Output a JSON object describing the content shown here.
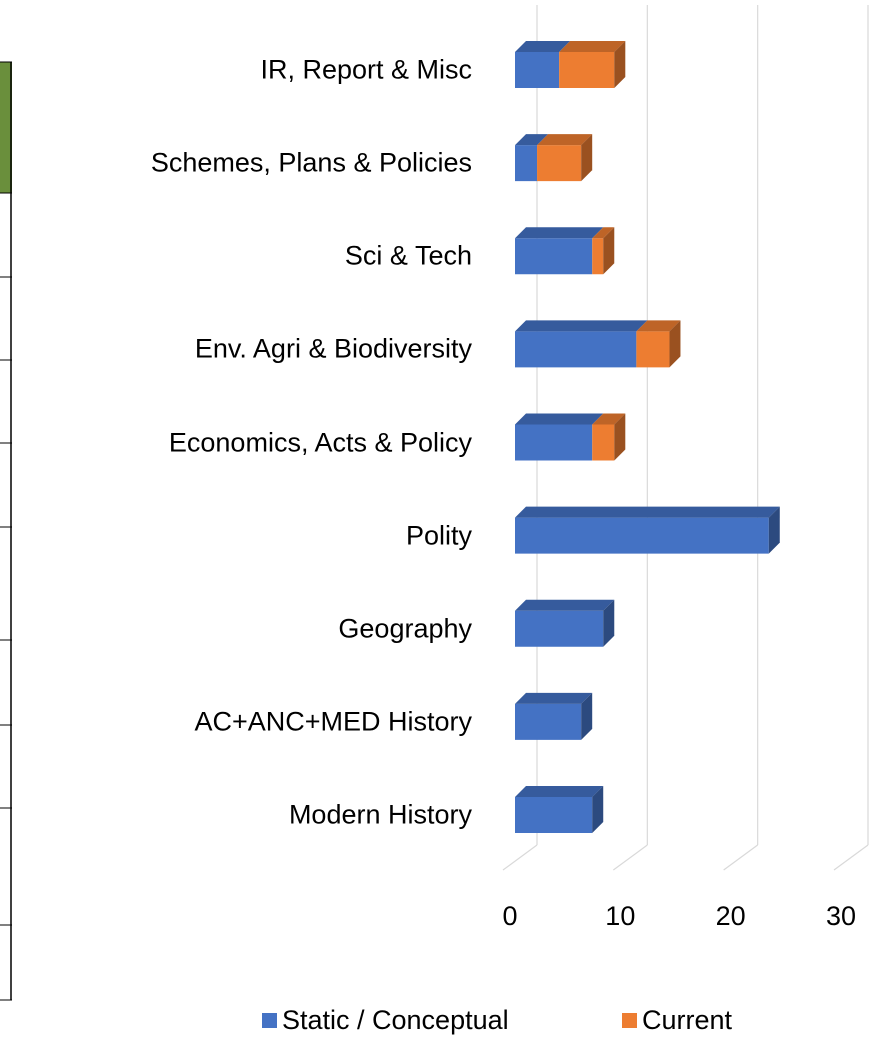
{
  "chart_data": {
    "type": "bar3d_stacked_horizontal",
    "categories": [
      "Modern History",
      "AC+ANC+MED History",
      "Geography",
      "Polity",
      "Economics, Acts & Policy",
      "Env. Agri & Biodiversity",
      "Sci & Tech",
      "Schemes, Plans & Policies",
      "IR, Report & Misc"
    ],
    "series": [
      {
        "name": "Static / Conceptual",
        "color": "#4472c4",
        "values": [
          7,
          6,
          8,
          23,
          7,
          11,
          7,
          2,
          4
        ]
      },
      {
        "name": "Current",
        "color": "#ed7d31",
        "values": [
          0,
          0,
          0,
          0,
          2,
          3,
          1,
          4,
          5
        ]
      }
    ],
    "xlim": [
      0,
      30
    ],
    "xticks": [
      0,
      10,
      20,
      30
    ],
    "grid": true,
    "legend": "bottom"
  }
}
